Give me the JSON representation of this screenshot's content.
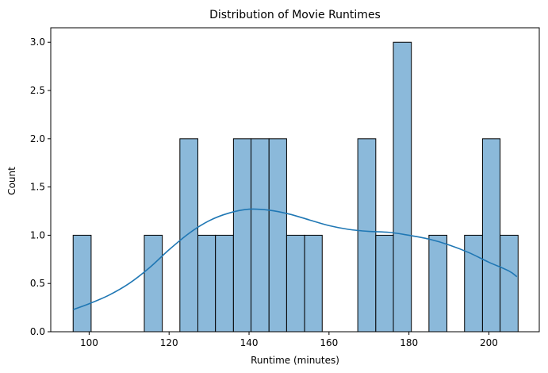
{
  "chart_data": {
    "type": "bar",
    "title": "Distribution of Movie Runtimes",
    "xlabel": "Runtime (minutes)",
    "ylabel": "Count",
    "xlim": [
      90.4,
      212.6
    ],
    "ylim": [
      0,
      3.15
    ],
    "x_ticks": [
      100,
      120,
      140,
      160,
      180,
      200
    ],
    "x_tick_labels": [
      "100",
      "120",
      "140",
      "160",
      "180",
      "200"
    ],
    "y_ticks": [
      0,
      0.5,
      1.0,
      1.5,
      2.0,
      2.5,
      3.0
    ],
    "y_tick_labels": [
      "0.0",
      "0.5",
      "1.0",
      "1.5",
      "2.0",
      "2.5",
      "3.0"
    ],
    "bin_edges": [
      96,
      100.5,
      104.9,
      109.4,
      113.8,
      118.3,
      122.7,
      127.2,
      131.6,
      136.1,
      140.5,
      145,
      149.4,
      153.9,
      158.3,
      162.8,
      167.2,
      171.7,
      176.1,
      180.6,
      185,
      189.5,
      193.9,
      198.4,
      202.8,
      207.3
    ],
    "counts": [
      1,
      0,
      0,
      0,
      1,
      0,
      2,
      1,
      1,
      2,
      2,
      2,
      1,
      1,
      0,
      0,
      2,
      1,
      3,
      0,
      1,
      0,
      1,
      2,
      1
    ],
    "kde": {
      "x": [
        96,
        100,
        105,
        110,
        115,
        120,
        125,
        130,
        135,
        140,
        145,
        150,
        155,
        160,
        165,
        170,
        175,
        180,
        185,
        190,
        195,
        200,
        205,
        207
      ],
      "y": [
        0.23,
        0.29,
        0.38,
        0.5,
        0.66,
        0.85,
        1.02,
        1.15,
        1.23,
        1.27,
        1.26,
        1.22,
        1.16,
        1.1,
        1.06,
        1.04,
        1.03,
        1.0,
        0.96,
        0.9,
        0.82,
        0.72,
        0.63,
        0.57
      ]
    },
    "grid": false,
    "colors": {
      "bar_fill": "#8bb9da",
      "bar_edge": "#000000",
      "kde_line": "#1f77b4"
    }
  }
}
